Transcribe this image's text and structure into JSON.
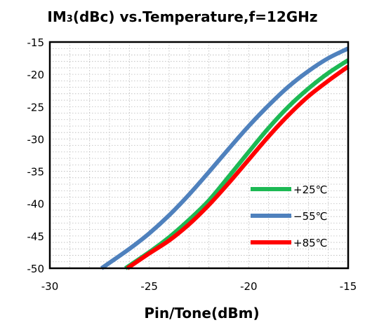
{
  "chart_data": {
    "type": "line",
    "title": {
      "prefix": "IM",
      "subscript": "3",
      "suffix": "(dBc) vs.Temperature,f=12GHz"
    },
    "xlabel": "Pin/Tone(dBm)",
    "ylabel": "",
    "xlim": [
      -30,
      -15
    ],
    "ylim": [
      -50,
      -15
    ],
    "xticks": [
      -30,
      -25,
      -20,
      -15
    ],
    "yticks": [
      -15,
      -20,
      -25,
      -30,
      -35,
      -40,
      -45,
      -50
    ],
    "x_minor_step": 1,
    "y_minor_step": 1,
    "grid": "dotted",
    "legend_position": "lower-right",
    "series": [
      {
        "name": "+25℃",
        "color": "#1db954",
        "x": [
          -26.2,
          -25,
          -24,
          -23,
          -22,
          -21,
          -20,
          -19,
          -18,
          -17,
          -16,
          -15
        ],
        "y": [
          -50,
          -47.5,
          -45.2,
          -42.5,
          -39.5,
          -35.8,
          -32.0,
          -28.3,
          -25.0,
          -22.2,
          -19.8,
          -17.8
        ]
      },
      {
        "name": "−55℃",
        "color": "#4f81bd",
        "x": [
          -27.4,
          -26,
          -25,
          -24,
          -23,
          -22,
          -21,
          -20,
          -19,
          -18,
          -17,
          -16,
          -15
        ],
        "y": [
          -50,
          -47.0,
          -44.6,
          -41.8,
          -38.6,
          -35.1,
          -31.5,
          -28.0,
          -24.8,
          -21.9,
          -19.5,
          -17.5,
          -16.0
        ]
      },
      {
        "name": "+85℃",
        "color": "#ff0000",
        "x": [
          -26.1,
          -25,
          -24,
          -23,
          -22,
          -21,
          -20,
          -19,
          -18,
          -17,
          -16,
          -15
        ],
        "y": [
          -50,
          -47.7,
          -45.7,
          -43.2,
          -40.2,
          -36.8,
          -33.2,
          -29.6,
          -26.3,
          -23.4,
          -21.0,
          -18.8
        ]
      }
    ]
  }
}
